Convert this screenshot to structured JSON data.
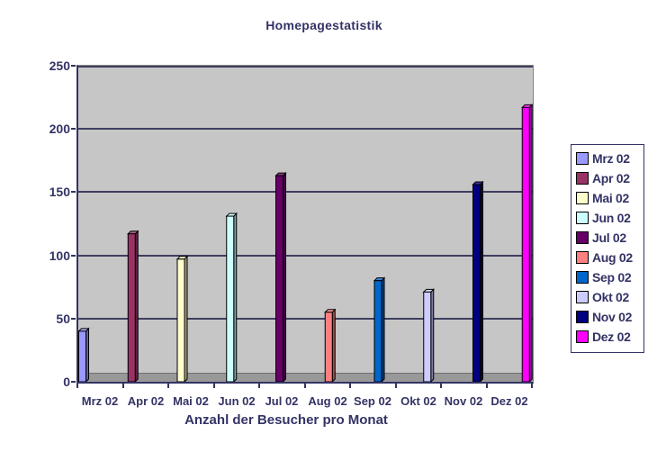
{
  "chart_data": {
    "type": "bar",
    "style": "3d-clustered-single-value-series",
    "title": "Homepagestatistik",
    "xlabel": "Anzahl der Besucher pro Monat",
    "ylabel": "",
    "ylim": [
      0,
      250
    ],
    "yticks": [
      0,
      50,
      100,
      150,
      200,
      250
    ],
    "grid": true,
    "legend_position": "right",
    "categories": [
      "Mrz 02",
      "Apr 02",
      "Mai 02",
      "Jun 02",
      "Jul 02",
      "Aug 02",
      "Sep 02",
      "Okt 02",
      "Nov 02",
      "Dez 02"
    ],
    "series": [
      {
        "name": "Mrz 02",
        "value": 40,
        "color": "#9999FF"
      },
      {
        "name": "Apr 02",
        "value": 117,
        "color": "#993366"
      },
      {
        "name": "Mai 02",
        "value": 97,
        "color": "#FFFFCC"
      },
      {
        "name": "Jun 02",
        "value": 131,
        "color": "#CCFFFF"
      },
      {
        "name": "Jul 02",
        "value": 163,
        "color": "#660066"
      },
      {
        "name": "Aug 02",
        "value": 55,
        "color": "#FF8080"
      },
      {
        "name": "Sep 02",
        "value": 80,
        "color": "#0066CC"
      },
      {
        "name": "Okt 02",
        "value": 71,
        "color": "#CCCCFF"
      },
      {
        "name": "Nov 02",
        "value": 156,
        "color": "#000080"
      },
      {
        "name": "Dez 02",
        "value": 217,
        "color": "#FF00FF"
      }
    ]
  },
  "colors": {
    "text": "#333366",
    "plot_bg": "#C6C6C6",
    "gridline": "#3E3E60",
    "axis": "#333366",
    "floor": "#999999",
    "floor_edge": "#707070",
    "plot_border": "#848484",
    "legend_border": "#333366",
    "bar_outline": "#000000",
    "background": "#FFFFFF"
  }
}
